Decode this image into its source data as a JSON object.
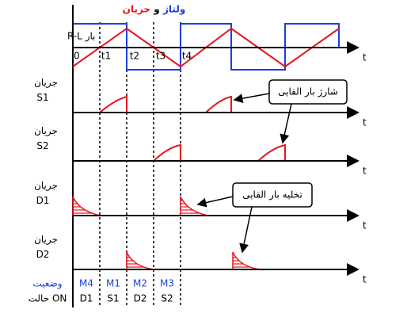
{
  "title": {
    "voltage": "ولتاژ",
    "and": "و",
    "current": "جریان"
  },
  "rows": [
    "بار R-L",
    "جریان S1",
    "جریان S2",
    "جریان D1",
    "جریان D2"
  ],
  "state_labels": {
    "state": "وضعیت",
    "on": "حالت ON"
  },
  "time_labels": [
    "0",
    "t1",
    "t2",
    "t3",
    "t4"
  ],
  "axis_label": "t",
  "callouts": [
    "شارژ بار القایی",
    "تخلیه بار القایی"
  ],
  "modes": [
    "M4",
    "M1",
    "M2",
    "M3"
  ],
  "on_devices": [
    "D1",
    "S1",
    "D2",
    "S2"
  ]
}
